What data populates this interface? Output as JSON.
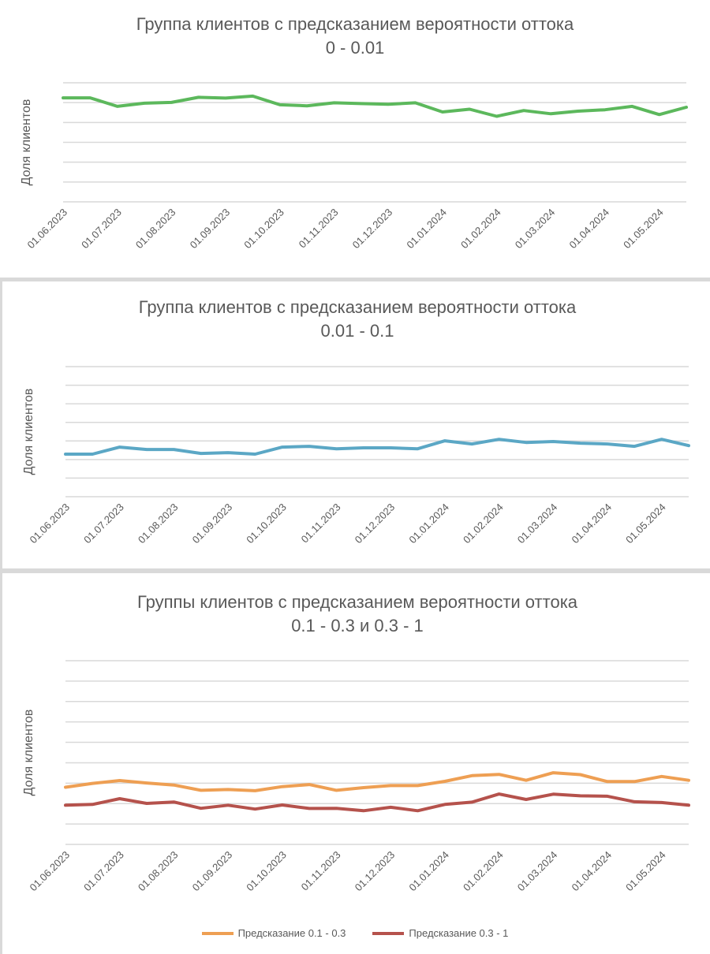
{
  "colors": {
    "c1": "#5cb85c",
    "c2": "#5ba7c5",
    "orange": "#ee9f53",
    "red": "#b5524c",
    "grid": "#d9d9d9",
    "text": "#595959"
  },
  "x_tick_labels": [
    "01.06.2023",
    "01.07.2023",
    "01.08.2023",
    "01.09.2023",
    "01.10.2023",
    "01.11.2023",
    "01.12.2023",
    "01.01.2024",
    "01.02.2024",
    "01.03.2024",
    "01.04.2024",
    "01.05.2024"
  ],
  "chart_data": [
    {
      "type": "line",
      "title": "Группа клиентов с предсказанием вероятности оттока",
      "subtitle": "0 - 0.01",
      "ylabel": "Доля клиентов",
      "y_tick_labels_shown": false,
      "grid": true,
      "ylim": [
        0,
        6
      ],
      "series": [
        {
          "color": "#5cb85c",
          "values": [
            5.24,
            5.24,
            4.81,
            4.97,
            5.01,
            5.27,
            5.23,
            5.33,
            4.89,
            4.84,
            4.99,
            4.95,
            4.92,
            4.99,
            4.53,
            4.67,
            4.31,
            4.6,
            4.44,
            4.57,
            4.64,
            4.81,
            4.4,
            4.77
          ]
        }
      ]
    },
    {
      "type": "line",
      "title": "Группа клиентов с предсказанием вероятности оттока",
      "subtitle": "0.01 - 0.1",
      "ylabel": "Доля клиентов",
      "y_tick_labels_shown": false,
      "grid": true,
      "ylim": [
        0,
        7
      ],
      "series": [
        {
          "color": "#5ba7c5",
          "values": [
            2.29,
            2.29,
            2.67,
            2.54,
            2.54,
            2.33,
            2.37,
            2.29,
            2.67,
            2.71,
            2.58,
            2.63,
            2.63,
            2.58,
            3.01,
            2.84,
            3.09,
            2.92,
            2.97,
            2.88,
            2.84,
            2.71,
            3.09,
            2.75
          ]
        }
      ]
    },
    {
      "type": "line",
      "title": "Группы клиентов с предсказанием вероятности оттока",
      "subtitle": "0.1 - 0.3 и  0.3 - 1",
      "ylabel": "Доля клиентов",
      "y_tick_labels_shown": false,
      "grid": true,
      "ylim": [
        0,
        9
      ],
      "legend_position": "bottom",
      "series": [
        {
          "name": "Предсказание 0.1 - 0.3",
          "color": "#ee9f53",
          "values": [
            2.8,
            2.99,
            3.13,
            3.01,
            2.91,
            2.65,
            2.69,
            2.63,
            2.83,
            2.93,
            2.65,
            2.78,
            2.88,
            2.88,
            3.09,
            3.37,
            3.43,
            3.14,
            3.51,
            3.42,
            3.08,
            3.08,
            3.33,
            3.14
          ]
        },
        {
          "name": "Предсказание 0.3 - 1",
          "color": "#b5524c",
          "values": [
            1.92,
            1.96,
            2.24,
            2.01,
            2.08,
            1.77,
            1.92,
            1.73,
            1.93,
            1.76,
            1.77,
            1.65,
            1.82,
            1.65,
            1.96,
            2.07,
            2.47,
            2.2,
            2.46,
            2.38,
            2.36,
            2.09,
            2.05,
            1.92
          ]
        }
      ]
    }
  ]
}
